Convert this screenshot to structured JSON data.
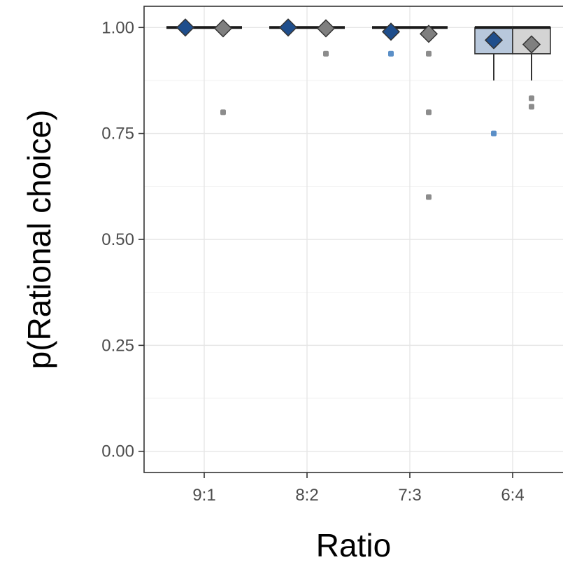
{
  "chart_data": {
    "type": "box",
    "title": "",
    "xlabel": "Ratio",
    "ylabel": "p(Rational choice)",
    "categories": [
      "9:1",
      "8:2",
      "7:3",
      "6:4"
    ],
    "ylim": [
      -0.05,
      1.05
    ],
    "yticks": [
      0.0,
      0.25,
      0.5,
      0.75,
      1.0
    ],
    "ytick_labels": [
      "0.00",
      "0.25",
      "0.50",
      "0.75",
      "1.00"
    ],
    "grid": true,
    "legend": "none",
    "series": [
      {
        "color": "#1f4e8c",
        "box_fill": "#b8c8dc",
        "outlier_color": "#5b8fc7",
        "boxes": [
          {
            "category": "9:1",
            "q1": 1.0,
            "median": 1.0,
            "q3": 1.0,
            "whisker_low": 1.0,
            "whisker_high": 1.0,
            "mean": 1.0,
            "outliers": []
          },
          {
            "category": "8:2",
            "q1": 1.0,
            "median": 1.0,
            "q3": 1.0,
            "whisker_low": 1.0,
            "whisker_high": 1.0,
            "mean": 1.0,
            "outliers": []
          },
          {
            "category": "7:3",
            "q1": 1.0,
            "median": 1.0,
            "q3": 1.0,
            "whisker_low": 1.0,
            "whisker_high": 1.0,
            "mean": 0.99,
            "outliers": [
              0.938
            ]
          },
          {
            "category": "6:4",
            "q1": 0.938,
            "median": 1.0,
            "q3": 1.0,
            "whisker_low": 0.875,
            "whisker_high": 1.0,
            "mean": 0.97,
            "outliers": [
              0.75
            ]
          }
        ]
      },
      {
        "color": "#7f7f7f",
        "box_fill": "#d4d4d4",
        "outlier_color": "#8c8c8c",
        "boxes": [
          {
            "category": "9:1",
            "q1": 1.0,
            "median": 1.0,
            "q3": 1.0,
            "whisker_low": 1.0,
            "whisker_high": 1.0,
            "mean": 0.998,
            "outliers": [
              0.8
            ]
          },
          {
            "category": "8:2",
            "q1": 1.0,
            "median": 1.0,
            "q3": 1.0,
            "whisker_low": 1.0,
            "whisker_high": 1.0,
            "mean": 0.998,
            "outliers": [
              0.938
            ]
          },
          {
            "category": "7:3",
            "q1": 1.0,
            "median": 1.0,
            "q3": 1.0,
            "whisker_low": 1.0,
            "whisker_high": 1.0,
            "mean": 0.985,
            "outliers": [
              0.938,
              0.8,
              0.6
            ]
          },
          {
            "category": "6:4",
            "q1": 0.938,
            "median": 1.0,
            "q3": 1.0,
            "whisker_low": 0.875,
            "whisker_high": 1.0,
            "mean": 0.96,
            "outliers": [
              0.833,
              0.813
            ]
          }
        ]
      }
    ]
  }
}
